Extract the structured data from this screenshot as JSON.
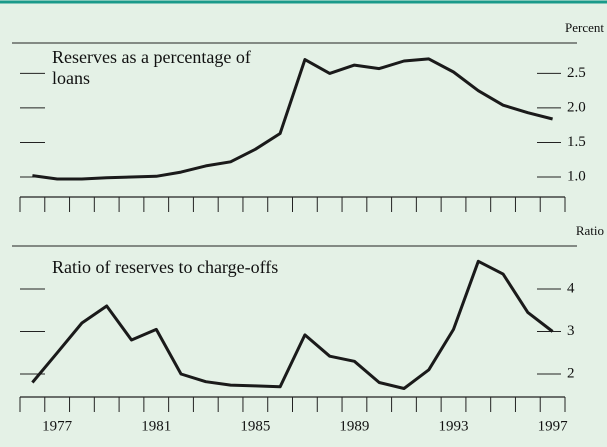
{
  "chart_data": [
    {
      "type": "line",
      "title": "Reserves as a percentage of loans",
      "y_label": "Percent",
      "color": "#1a1a1a",
      "x": [
        1976,
        1977,
        1978,
        1979,
        1980,
        1981,
        1982,
        1983,
        1984,
        1985,
        1986,
        1987,
        1988,
        1989,
        1990,
        1991,
        1992,
        1993,
        1994,
        1995,
        1996,
        1997
      ],
      "values": [
        1.02,
        0.97,
        0.97,
        0.99,
        1.0,
        1.01,
        1.07,
        1.16,
        1.22,
        1.4,
        1.63,
        2.7,
        2.5,
        2.62,
        2.57,
        2.68,
        2.71,
        2.52,
        2.25,
        2.04,
        1.93,
        1.84
      ],
      "xlim": [
        1975.5,
        1997.5
      ],
      "ylim": [
        0.71,
        2.94
      ],
      "yticks": [
        {
          "value": 1,
          "label": "1.0"
        },
        1.5,
        {
          "value": 2,
          "label": "2.0"
        },
        2.5
      ]
    },
    {
      "type": "line",
      "title": "Ratio of reserves to charge-offs",
      "y_label": "Ratio",
      "color": "#1a1a1a",
      "x": [
        1976,
        1977,
        1978,
        1979,
        1980,
        1981,
        1982,
        1983,
        1984,
        1985,
        1986,
        1987,
        1988,
        1989,
        1990,
        1991,
        1992,
        1993,
        1994,
        1995,
        1996,
        1997
      ],
      "values": [
        1.8,
        2.5,
        3.2,
        3.6,
        2.8,
        3.05,
        2.0,
        1.82,
        1.74,
        1.72,
        1.7,
        2.92,
        2.42,
        2.3,
        1.8,
        1.66,
        2.1,
        3.05,
        4.65,
        4.35,
        3.45,
        3.0
      ],
      "xlim": [
        1975.5,
        1997.5
      ],
      "ylim": [
        1.46,
        5.01
      ],
      "xticks": [
        1977,
        1981,
        1985,
        1989,
        1993,
        1997
      ],
      "yticks": [
        2,
        3,
        4
      ]
    }
  ]
}
